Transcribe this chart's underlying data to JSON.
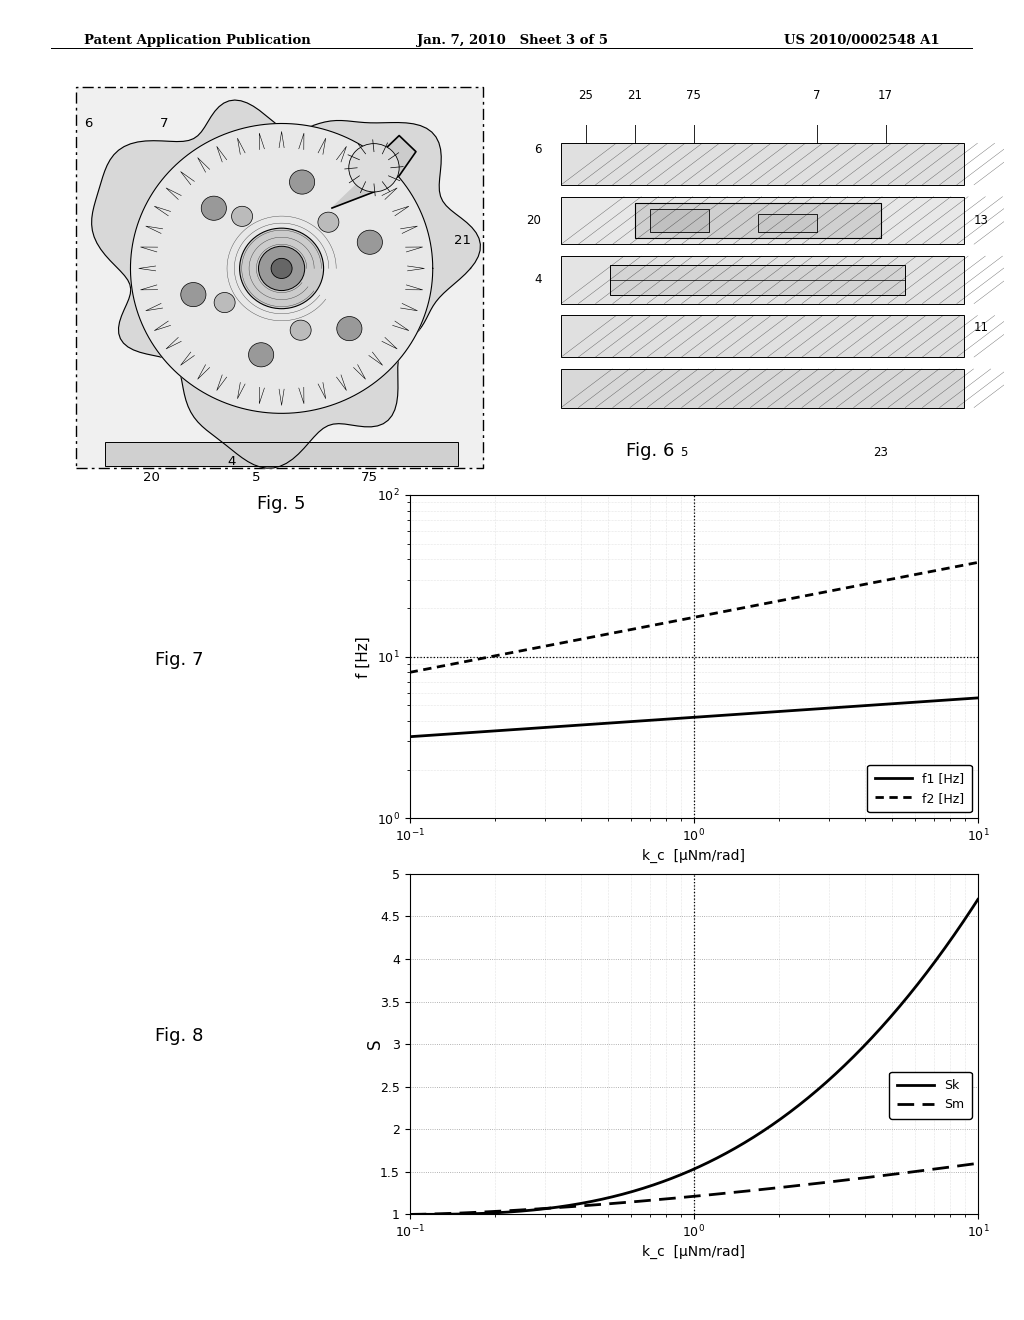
{
  "header_left": "Patent Application Publication",
  "header_mid": "Jan. 7, 2010   Sheet 3 of 5",
  "header_right": "US 2010/0002548 A1",
  "fig7_title": "Fig. 7",
  "fig8_title": "Fig. 8",
  "fig5_title": "Fig. 5",
  "fig6_title": "Fig. 6",
  "fig7_ylabel": "f [Hz]",
  "fig7_xlabel": "k_c  [μNm/rad]",
  "fig8_ylabel": "S",
  "fig8_xlabel": "k_c  [μNm/rad]",
  "fig7_ylim": [
    1,
    100
  ],
  "fig8_ylim": [
    1.0,
    5.0
  ],
  "fig7_hline": 10.0,
  "fig7_vline": 1.0,
  "fig8_vline": 1.0,
  "legend7_labels": [
    "f1 [Hz]",
    "f2 [Hz]"
  ],
  "legend8_labels": [
    "Sk",
    "Sm"
  ],
  "bg_color": "#ffffff",
  "line_color": "#000000",
  "grid_color": "#bbbbbb",
  "fig5_labels_bottom": [
    "20",
    "5",
    "75"
  ],
  "fig5_labels_other": [
    "6",
    "7",
    "21",
    "4"
  ],
  "fig6_labels_top": [
    "25",
    "21",
    "75",
    "7",
    "17"
  ],
  "fig6_labels_side": [
    "6",
    "20",
    "4",
    "13",
    "11",
    "5",
    "23"
  ]
}
